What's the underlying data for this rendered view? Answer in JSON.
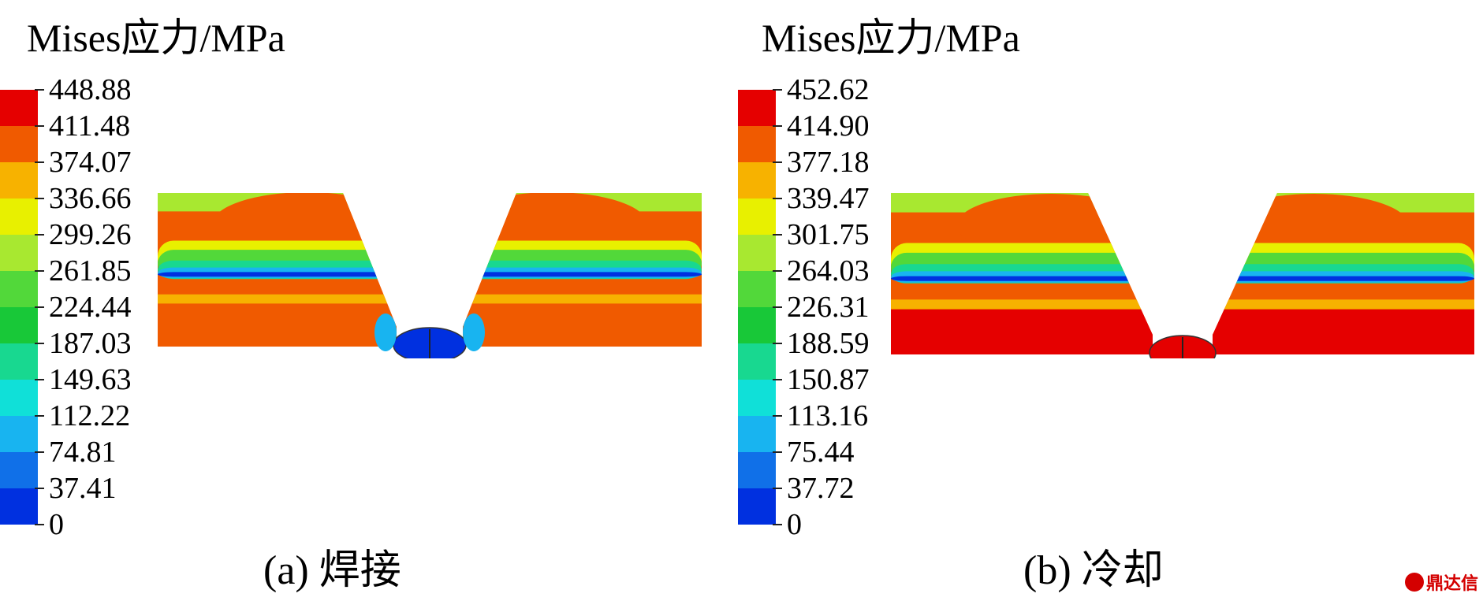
{
  "panels": [
    {
      "id": "a",
      "legend_title": "Mises应力/MPa",
      "caption": "(a) 焊接",
      "tick_labels": [
        "448.88",
        "411.48",
        "374.07",
        "336.66",
        "299.26",
        "261.85",
        "224.44",
        "187.03",
        "149.63",
        "112.22",
        "74.81",
        "37.41",
        "0"
      ],
      "weld_state": "low"
    },
    {
      "id": "b",
      "legend_title": "Mises应力/MPa",
      "caption": "(b) 冷却",
      "tick_labels": [
        "452.62",
        "414.90",
        "377.18",
        "339.47",
        "301.75",
        "264.03",
        "226.31",
        "188.59",
        "150.87",
        "113.16",
        "75.44",
        "37.72",
        "0"
      ],
      "weld_state": "high"
    }
  ],
  "colorbar_colors": [
    "#e50000",
    "#f05a00",
    "#f7b200",
    "#e8f000",
    "#a8e830",
    "#52d83a",
    "#18c838",
    "#18d890",
    "#10e0d8",
    "#18b4f0",
    "#1070e8",
    "#0030e0"
  ],
  "watermark": "鼎达信"
}
